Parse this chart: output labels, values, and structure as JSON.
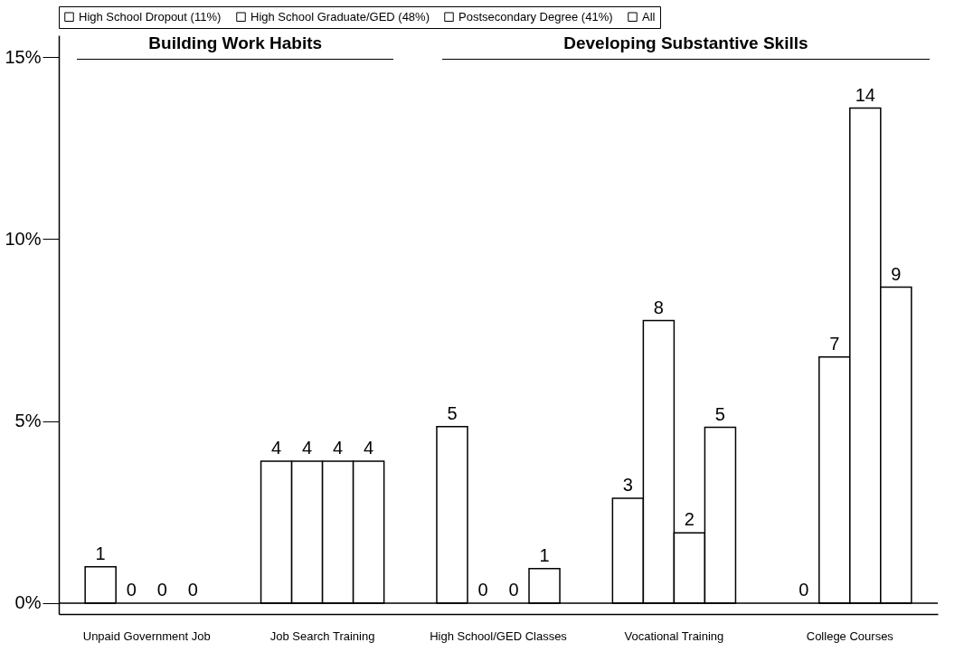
{
  "chart_data": {
    "type": "bar",
    "categories": [
      "Unpaid Government Job",
      "Job Search Training",
      "High School/GED Classes",
      "Vocational Training",
      "College  Courses"
    ],
    "series": [
      {
        "name": "High School Dropout (11%)",
        "color": "#ffffff",
        "values": [
          1.0,
          3.9,
          4.85,
          2.88,
          0
        ],
        "value_labels": [
          "1",
          "4",
          "5",
          "3",
          "0"
        ]
      },
      {
        "name": "High School Graduate/GED (48%)",
        "color": "#ffffff",
        "values": [
          0,
          3.9,
          0,
          7.76,
          6.76
        ],
        "value_labels": [
          "0",
          "4",
          "0",
          "8",
          "7"
        ]
      },
      {
        "name": "Postsecondary Degree (41%)",
        "color": "#ffffff",
        "values": [
          0,
          3.9,
          0,
          1.93,
          13.6
        ],
        "value_labels": [
          "0",
          "4",
          "0",
          "2",
          "14"
        ]
      },
      {
        "name": "All",
        "color": "#ffffff",
        "values": [
          0,
          3.9,
          0.95,
          4.83,
          8.68
        ],
        "value_labels": [
          "0",
          "4",
          "1",
          "5",
          "9"
        ]
      }
    ],
    "ylim": [
      -0.3,
      15.6
    ],
    "yticks": [
      {
        "value": 0,
        "label": "0%"
      },
      {
        "value": 5,
        "label": "5%"
      },
      {
        "value": 10,
        "label": "10%"
      },
      {
        "value": 15,
        "label": "15%"
      }
    ],
    "ref_lines": [
      {
        "axis": "y",
        "value": 0
      }
    ],
    "annotations": [
      "Building Work Habits",
      "Developing Substantive Skills"
    ],
    "legend": "top"
  }
}
